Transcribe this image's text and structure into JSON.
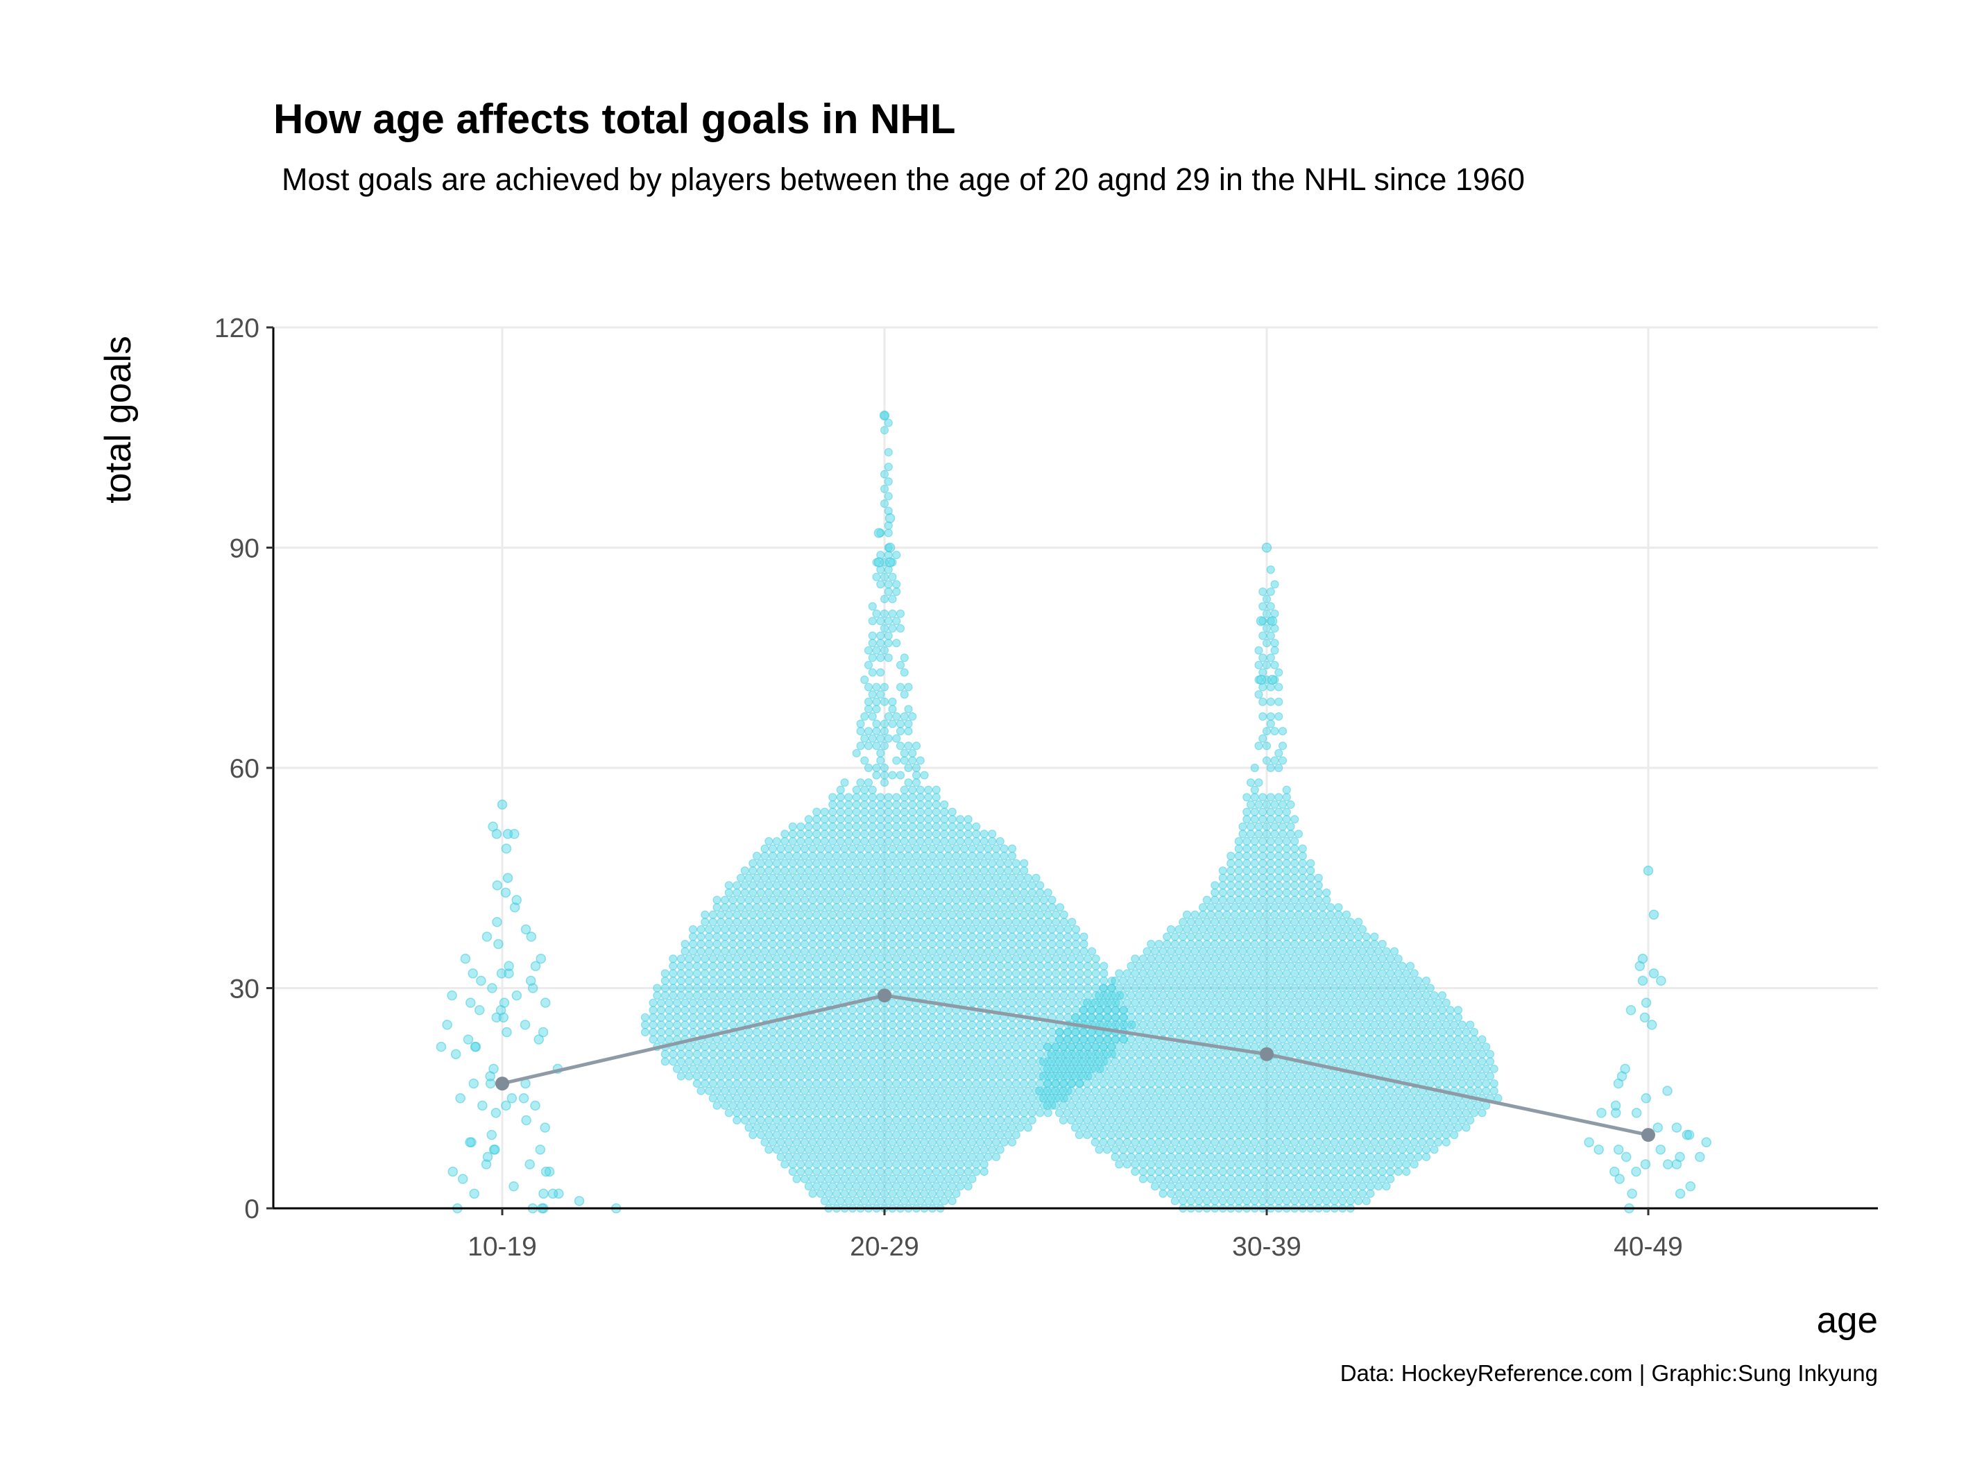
{
  "colors": {
    "points": "#4dd8e8",
    "points_stroke": "#3ac3d6",
    "mean_line": "#8e9ba6",
    "mean_point": "#7f8c97",
    "grid": "#ebebeb"
  },
  "chart_data": {
    "type": "scatter",
    "subtype": "beeswarm-with-mean-line",
    "title": "How age affects total goals in NHL",
    "subtitle": "Most goals are achieved by players between the age of 20 agnd 29 in the NHL since 1960",
    "xlabel": "age",
    "ylabel": "total goals",
    "caption": "Data: HockeyReference.com | Graphic:Sung Inkyung",
    "categories": [
      "10-19",
      "20-29",
      "30-39",
      "40-49"
    ],
    "ylim": [
      0,
      120
    ],
    "yticks": [
      0,
      30,
      60,
      90,
      120
    ],
    "ytick_labels": [
      "0",
      "30",
      "60",
      "90",
      "120"
    ],
    "grid": true,
    "legend": "none",
    "mean_series": {
      "values": [
        17,
        29,
        21,
        10
      ]
    },
    "distribution_profile": {
      "10-19": [
        [
          0,
          16
        ],
        [
          3,
          10
        ],
        [
          10,
          6
        ],
        [
          20,
          9
        ],
        [
          30,
          7
        ],
        [
          40,
          5
        ],
        [
          45,
          1
        ],
        [
          51,
          2
        ],
        [
          55,
          1
        ]
      ],
      "20-29": [
        [
          0,
          15
        ],
        [
          10,
          34
        ],
        [
          20,
          56
        ],
        [
          25,
          62
        ],
        [
          32,
          56
        ],
        [
          40,
          46
        ],
        [
          50,
          30
        ],
        [
          55,
          15
        ],
        [
          60,
          9
        ],
        [
          70,
          6
        ],
        [
          80,
          4
        ],
        [
          88,
          3
        ],
        [
          94,
          1
        ],
        [
          108,
          1
        ]
      ],
      "30-39": [
        [
          0,
          22
        ],
        [
          10,
          48
        ],
        [
          15,
          58
        ],
        [
          22,
          56
        ],
        [
          28,
          46
        ],
        [
          35,
          32
        ],
        [
          42,
          16
        ],
        [
          50,
          8
        ],
        [
          60,
          4
        ],
        [
          72,
          3
        ],
        [
          80,
          2
        ],
        [
          90,
          1
        ]
      ],
      "40-49": [
        [
          0,
          4
        ],
        [
          5,
          8
        ],
        [
          10,
          9
        ],
        [
          15,
          5
        ],
        [
          20,
          3
        ],
        [
          26,
          3
        ],
        [
          32,
          2
        ],
        [
          40,
          1
        ],
        [
          46,
          1
        ]
      ]
    },
    "notable_points": [
      {
        "category": "10-19",
        "values": [
          55,
          51,
          51,
          45
        ]
      },
      {
        "category": "20-29",
        "values": [
          108,
          94,
          92,
          90,
          88,
          88
        ]
      },
      {
        "category": "30-39",
        "values": [
          90,
          80,
          80,
          72,
          72
        ]
      },
      {
        "category": "40-49",
        "values": [
          46,
          40,
          34,
          32,
          31
        ]
      }
    ]
  }
}
